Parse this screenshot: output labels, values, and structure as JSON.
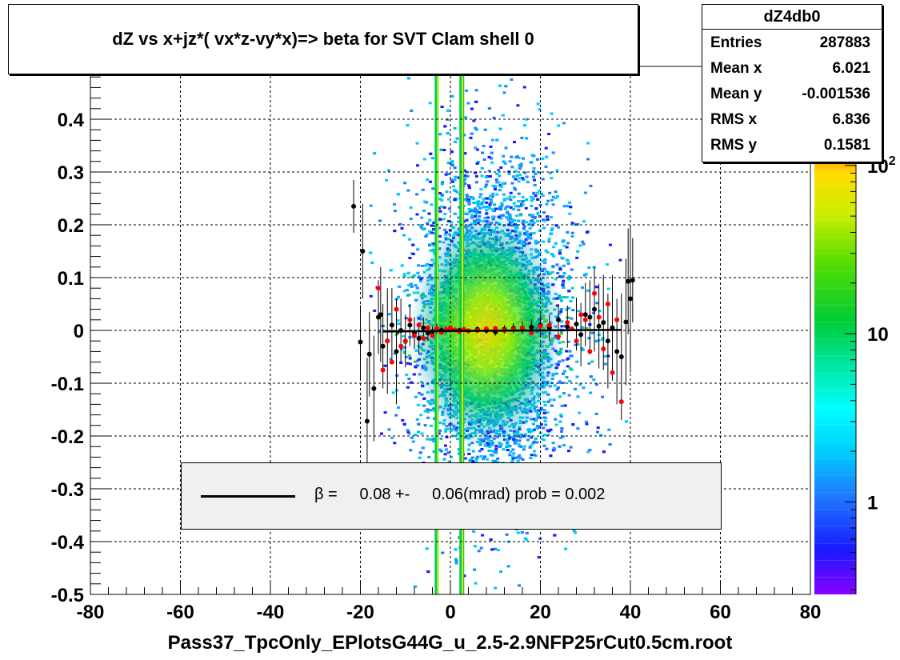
{
  "title": "dZ vs  x+jz*( vx*z-vy*x)=> beta  for SVT Clam shell 0",
  "stats": {
    "name": "dZ4db0",
    "rows": [
      {
        "label": "Entries",
        "value": "287883"
      },
      {
        "label": "Mean x",
        "value": "6.021"
      },
      {
        "label": "Mean y",
        "value": "-0.001536"
      },
      {
        "label": "RMS x",
        "value": "6.836"
      },
      {
        "label": "RMS y",
        "value": "0.1581"
      }
    ]
  },
  "legend": {
    "text": "β =     0.08 +-     0.06(mrad) prob = 0.002",
    "line_color": "#000000"
  },
  "xlabel": "Pass37_TpcOnly_EPlotsG44G_u_2.5-2.9NFP25rCut0.5cm.root",
  "chart_data": {
    "type": "scatter",
    "title": "dZ vs  x+jz*( vx*z-vy*x)=> beta  for SVT Clam shell 0",
    "xlabel": "Pass37_TpcOnly_EPlotsG44G_u_2.5-2.9NFP25rCut0.5cm.root",
    "ylabel": "",
    "xlim": [
      -80,
      80
    ],
    "ylim": [
      -0.5,
      0.5
    ],
    "grid": true,
    "x_ticks": [
      "-80",
      "-60",
      "-40",
      "-20",
      "0",
      "20",
      "40",
      "60",
      "80"
    ],
    "y_ticks": [
      "-0.5",
      "-0.4",
      "-0.3",
      "-0.2",
      "-0.1",
      "0",
      "0.1",
      "0.2",
      "0.3",
      "0.4"
    ],
    "colorbar_ticks": [
      {
        "label": "1",
        "value": 1
      },
      {
        "label": "10",
        "value": 10
      },
      {
        "label": "10",
        "exp": "2",
        "value": 100
      }
    ],
    "fit_line": {
      "x": [
        -15,
        38
      ],
      "y": [
        -0.002,
        0.001
      ]
    },
    "series": [
      {
        "color": "#000000",
        "x": [
          -21.5,
          -20,
          -19.5,
          -18.5,
          -18,
          -17,
          -16,
          -15.5,
          -15,
          -14,
          -13,
          -12,
          -11,
          -10,
          -9,
          -8,
          -7,
          -6,
          -5,
          -4,
          -3,
          -2,
          -1,
          0,
          2,
          4,
          6,
          8,
          10,
          12,
          14,
          16,
          18,
          20,
          22,
          24,
          26,
          28,
          29,
          30,
          31,
          32,
          33,
          34,
          35,
          36,
          37,
          38,
          39,
          39.5,
          40,
          40.5
        ],
        "y": [
          0.235,
          -0.022,
          0.15,
          -0.172,
          -0.045,
          -0.11,
          0.025,
          0.03,
          -0.03,
          -0.02,
          0.01,
          -0.04,
          0.0,
          -0.02,
          0.01,
          -0.005,
          -0.015,
          0.005,
          -0.005,
          -0.002,
          0.003,
          0.0,
          0.001,
          0.002,
          0.0,
          -0.001,
          0.002,
          0.0,
          -0.003,
          0.002,
          0.004,
          0.005,
          0.006,
          0.01,
          0.005,
          0.02,
          0.007,
          0.012,
          -0.008,
          0.03,
          0.025,
          0.04,
          0.008,
          0.015,
          -0.02,
          0.005,
          -0.04,
          -0.05,
          0.016,
          0.093,
          0.06,
          0.095
        ],
        "yerr": [
          0.05,
          0.07,
          0.09,
          0.12,
          0.08,
          0.1,
          0.07,
          0.09,
          0.08,
          0.1,
          0.07,
          0.1,
          0.06,
          0.05,
          0.04,
          0.03,
          0.03,
          0.02,
          0.015,
          0.01,
          0.01,
          0.008,
          0.006,
          0.006,
          0.005,
          0.005,
          0.005,
          0.006,
          0.007,
          0.008,
          0.01,
          0.012,
          0.015,
          0.02,
          0.025,
          0.03,
          0.04,
          0.05,
          0.06,
          0.06,
          0.07,
          0.08,
          0.08,
          0.09,
          0.09,
          0.1,
          0.1,
          0.12,
          0.12,
          0.1,
          0.14,
          0.08
        ]
      },
      {
        "color": "#ff0000",
        "x": [
          -16,
          -15,
          -14,
          -13,
          -12,
          -11,
          -10,
          -9,
          -8,
          -7,
          -6,
          -5,
          -4,
          -3,
          -2,
          -1,
          0,
          1,
          2,
          3,
          4,
          6,
          8,
          10,
          12,
          14,
          16,
          18,
          20,
          22,
          24,
          26,
          27,
          28,
          29,
          30,
          31,
          32,
          33,
          34,
          35,
          36,
          37,
          38
        ],
        "y": [
          0.08,
          -0.075,
          -0.02,
          -0.06,
          0.04,
          -0.03,
          -0.02,
          0.02,
          -0.01,
          0.01,
          -0.015,
          0.005,
          -0.01,
          0.003,
          -0.004,
          0.002,
          0.005,
          0.001,
          -0.002,
          0.002,
          -0.001,
          0.0,
          0.003,
          0.004,
          0.0,
          0.002,
          0.005,
          -0.005,
          0.008,
          0.01,
          -0.012,
          0.015,
          0.003,
          -0.02,
          0.03,
          0.02,
          -0.04,
          0.07,
          0.025,
          -0.035,
          0.05,
          -0.08,
          0.02,
          -0.135
        ],
        "yerr": []
      }
    ]
  }
}
